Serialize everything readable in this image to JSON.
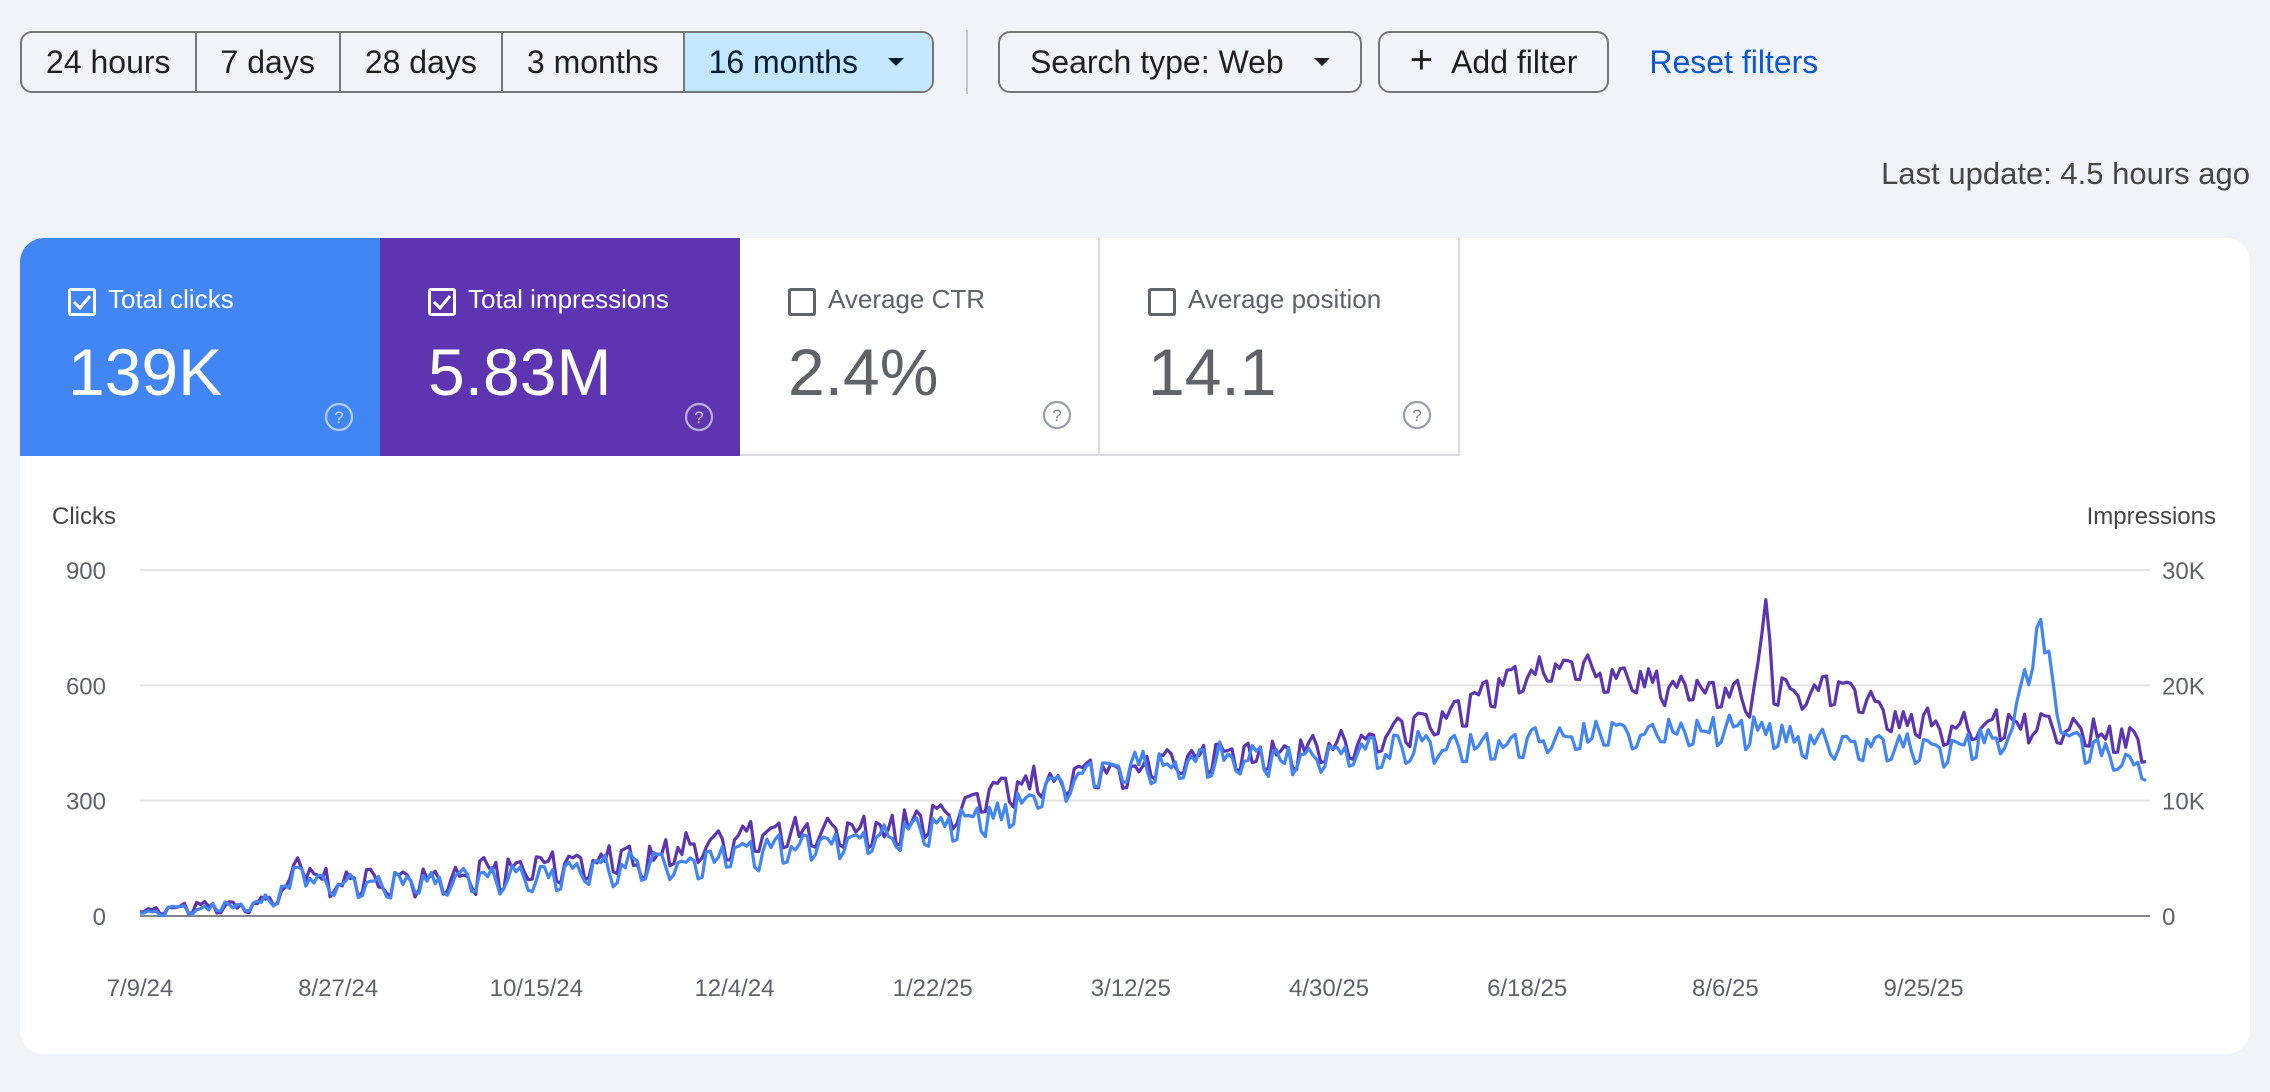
{
  "filters": {
    "ranges": [
      "24 hours",
      "7 days",
      "28 days",
      "3 months",
      "16 months"
    ],
    "selected": "16 months",
    "search_type": "Search type: Web",
    "add_filter": "Add filter",
    "reset": "Reset filters"
  },
  "last_update": "Last update: 4.5 hours ago",
  "metrics": [
    {
      "label": "Total clicks",
      "value": "139K",
      "checked": true,
      "color": "#4285f4"
    },
    {
      "label": "Total impressions",
      "value": "5.83M",
      "checked": true,
      "color": "#5e35b1"
    },
    {
      "label": "Average CTR",
      "value": "2.4%",
      "checked": false
    },
    {
      "label": "Average position",
      "value": "14.1",
      "checked": false
    }
  ],
  "chart_data": {
    "type": "line",
    "left_axis_title": "Clicks",
    "right_axis_title": "Impressions",
    "left_ylim": [
      0,
      900
    ],
    "right_ylim": [
      0,
      30000
    ],
    "left_ticks": [
      "0",
      "300",
      "600",
      "900"
    ],
    "right_ticks": [
      "0",
      "10K",
      "20K",
      "30K"
    ],
    "x_ticks": [
      "7/9/24",
      "8/27/24",
      "10/15/24",
      "12/4/24",
      "1/22/25",
      "3/12/25",
      "4/30/25",
      "6/18/25",
      "8/6/25",
      "9/25/25"
    ],
    "x_range_days": [
      0,
      497
    ],
    "series": [
      {
        "name": "Total clicks",
        "axis": "left",
        "color": "#4285f4",
        "days": 496,
        "anchors": [
          [
            0,
            10
          ],
          [
            14,
            22
          ],
          [
            28,
            28
          ],
          [
            37,
            75
          ],
          [
            40,
            160
          ],
          [
            42,
            95
          ],
          [
            49,
            80
          ],
          [
            56,
            85
          ],
          [
            70,
            90
          ],
          [
            84,
            95
          ],
          [
            98,
            110
          ],
          [
            112,
            125
          ],
          [
            126,
            130
          ],
          [
            140,
            150
          ],
          [
            154,
            170
          ],
          [
            168,
            195
          ],
          [
            182,
            205
          ],
          [
            196,
            230
          ],
          [
            210,
            255
          ],
          [
            224,
            330
          ],
          [
            238,
            380
          ],
          [
            252,
            395
          ],
          [
            266,
            410
          ],
          [
            280,
            415
          ],
          [
            294,
            420
          ],
          [
            308,
            430
          ],
          [
            322,
            445
          ],
          [
            336,
            455
          ],
          [
            350,
            470
          ],
          [
            364,
            475
          ],
          [
            378,
            485
          ],
          [
            392,
            490
          ],
          [
            406,
            470
          ],
          [
            420,
            450
          ],
          [
            434,
            440
          ],
          [
            448,
            435
          ],
          [
            462,
            470
          ],
          [
            470,
            750
          ],
          [
            476,
            460
          ],
          [
            490,
            410
          ],
          [
            496,
            390
          ]
        ],
        "amp": 45
      },
      {
        "name": "Total impressions",
        "axis": "right",
        "color": "#5e35b1",
        "days": 496,
        "anchors": [
          [
            0,
            400
          ],
          [
            14,
            800
          ],
          [
            28,
            900
          ],
          [
            37,
            2500
          ],
          [
            40,
            5500
          ],
          [
            42,
            3300
          ],
          [
            49,
            3100
          ],
          [
            56,
            3000
          ],
          [
            70,
            3300
          ],
          [
            84,
            3600
          ],
          [
            98,
            4300
          ],
          [
            112,
            4800
          ],
          [
            126,
            5200
          ],
          [
            140,
            6500
          ],
          [
            154,
            7000
          ],
          [
            168,
            7200
          ],
          [
            182,
            7500
          ],
          [
            196,
            8500
          ],
          [
            210,
            10500
          ],
          [
            224,
            12000
          ],
          [
            238,
            12500
          ],
          [
            252,
            13500
          ],
          [
            266,
            13800
          ],
          [
            280,
            14000
          ],
          [
            294,
            14800
          ],
          [
            308,
            16000
          ],
          [
            322,
            17000
          ],
          [
            336,
            20000
          ],
          [
            350,
            22000
          ],
          [
            364,
            21000
          ],
          [
            378,
            20000
          ],
          [
            392,
            19500
          ],
          [
            399,
            19000
          ],
          [
            402,
            27500
          ],
          [
            404,
            19500
          ],
          [
            420,
            20000
          ],
          [
            434,
            17000
          ],
          [
            448,
            16500
          ],
          [
            462,
            17000
          ],
          [
            476,
            16500
          ],
          [
            496,
            14800
          ]
        ],
        "amp": 1600
      }
    ]
  }
}
